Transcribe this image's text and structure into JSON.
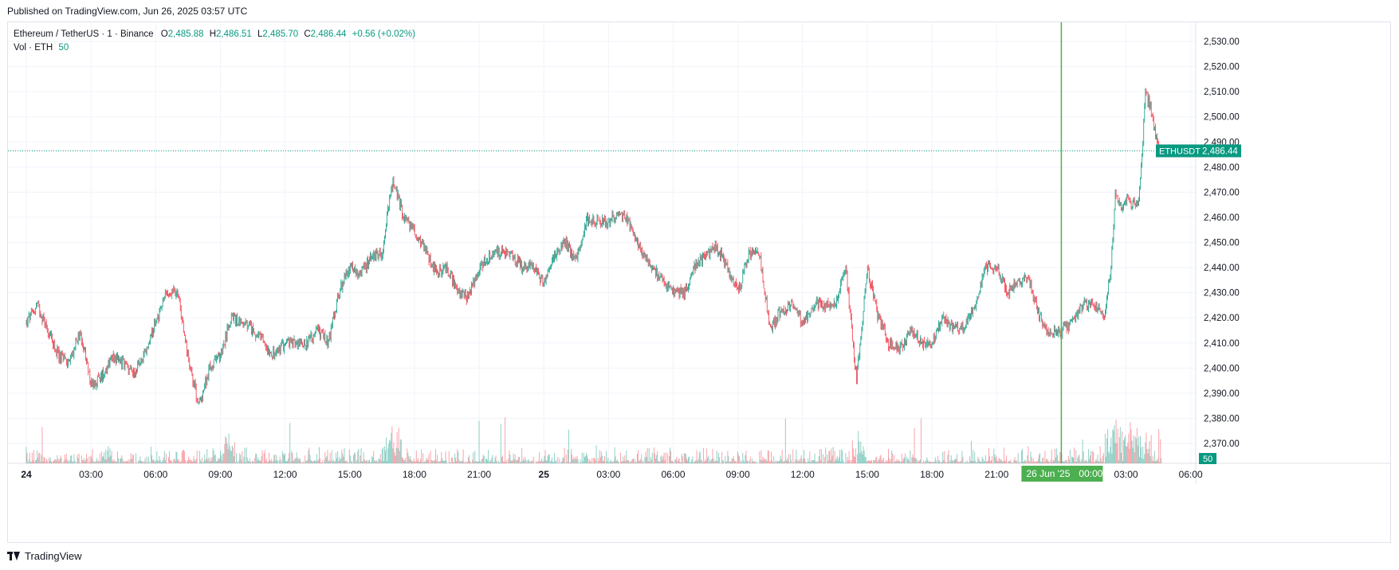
{
  "header": {
    "published": "Published on TradingView.com, Jun 26, 2025 03:57 UTC"
  },
  "legend": {
    "symbol": "Ethereum / TetherUS · 1 · Binance",
    "o_label": "O",
    "o_value": "2,485.88",
    "h_label": "H",
    "h_value": "2,486.51",
    "l_label": "L",
    "l_value": "2,485.70",
    "c_label": "C",
    "c_value": "2,486.44",
    "change": "+0.56 (+0.02%)",
    "vol_label": "Vol · ETH",
    "vol_value": "50"
  },
  "colors": {
    "up": "#089981",
    "down": "#f23645",
    "crosshair": "#4caf50",
    "price_line": "#089981"
  },
  "footer": {
    "brand": "TradingView",
    "icon": "tradingview-logo-icon"
  },
  "chart_data": {
    "type": "candlestick",
    "symbol": "ETHUSDT",
    "interval": "1 minute",
    "y_axis": {
      "min": 2362,
      "max": 2533,
      "ticks": [
        2370,
        2380,
        2390,
        2400,
        2410,
        2420,
        2430,
        2440,
        2450,
        2460,
        2470,
        2480,
        2490,
        2500,
        2510,
        2520,
        2530
      ],
      "tick_labels": [
        "2,370.00",
        "2,380.00",
        "2,390.00",
        "2,400.00",
        "2,410.00",
        "2,420.00",
        "2,430.00",
        "2,440.00",
        "2,450.00",
        "2,460.00",
        "2,470.00",
        "2,480.00",
        "2,490.00",
        "2,500.00",
        "2,510.00",
        "2,520.00",
        "2,530.00"
      ]
    },
    "x_axis": {
      "start_hour": 0,
      "end_hour": 54,
      "ticks": [
        {
          "hour": 0,
          "label": "24",
          "bold": true
        },
        {
          "hour": 3,
          "label": "03:00"
        },
        {
          "hour": 6,
          "label": "06:00"
        },
        {
          "hour": 9,
          "label": "09:00"
        },
        {
          "hour": 12,
          "label": "12:00"
        },
        {
          "hour": 15,
          "label": "15:00"
        },
        {
          "hour": 18,
          "label": "18:00"
        },
        {
          "hour": 21,
          "label": "21:00"
        },
        {
          "hour": 24,
          "label": "25",
          "bold": true
        },
        {
          "hour": 27,
          "label": "03:00"
        },
        {
          "hour": 30,
          "label": "06:00"
        },
        {
          "hour": 33,
          "label": "09:00"
        },
        {
          "hour": 36,
          "label": "12:00"
        },
        {
          "hour": 39,
          "label": "15:00"
        },
        {
          "hour": 42,
          "label": "18:00"
        },
        {
          "hour": 45,
          "label": "21:00"
        },
        {
          "hour": 51,
          "label": "03:00"
        },
        {
          "hour": 54,
          "label": "06:00"
        }
      ]
    },
    "crosshair": {
      "hour": 48,
      "label": "26 Jun '25",
      "time_label": "00:00"
    },
    "last_price": {
      "value": 2486.44,
      "label": "2,486.44",
      "symbol_label": "ETHUSDT"
    },
    "volume_last": {
      "label": "50"
    },
    "price_path": [
      [
        0.0,
        2418
      ],
      [
        0.5,
        2425
      ],
      [
        1.0,
        2415
      ],
      [
        1.5,
        2405
      ],
      [
        2.0,
        2402
      ],
      [
        2.5,
        2415
      ],
      [
        3.0,
        2393
      ],
      [
        3.5,
        2397
      ],
      [
        4.0,
        2405
      ],
      [
        4.5,
        2402
      ],
      [
        5.0,
        2398
      ],
      [
        5.5,
        2405
      ],
      [
        6.0,
        2418
      ],
      [
        6.5,
        2430
      ],
      [
        7.0,
        2430
      ],
      [
        7.5,
        2405
      ],
      [
        8.0,
        2385
      ],
      [
        8.5,
        2400
      ],
      [
        9.0,
        2405
      ],
      [
        9.5,
        2420
      ],
      [
        10.0,
        2418
      ],
      [
        10.5,
        2415
      ],
      [
        11.0,
        2410
      ],
      [
        11.5,
        2405
      ],
      [
        12.0,
        2410
      ],
      [
        12.5,
        2410
      ],
      [
        13.0,
        2410
      ],
      [
        13.5,
        2415
      ],
      [
        14.0,
        2410
      ],
      [
        14.5,
        2430
      ],
      [
        15.0,
        2440
      ],
      [
        15.5,
        2437
      ],
      [
        16.0,
        2445
      ],
      [
        16.5,
        2446
      ],
      [
        17.0,
        2475
      ],
      [
        17.5,
        2460
      ],
      [
        18.0,
        2455
      ],
      [
        18.5,
        2447
      ],
      [
        19.0,
        2438
      ],
      [
        19.5,
        2440
      ],
      [
        20.0,
        2430
      ],
      [
        20.5,
        2428
      ],
      [
        21.0,
        2440
      ],
      [
        21.5,
        2445
      ],
      [
        22.0,
        2446
      ],
      [
        22.5,
        2445
      ],
      [
        23.0,
        2440
      ],
      [
        23.5,
        2440
      ],
      [
        24.0,
        2434
      ],
      [
        24.5,
        2445
      ],
      [
        25.0,
        2450
      ],
      [
        25.5,
        2443
      ],
      [
        26.0,
        2460
      ],
      [
        26.5,
        2458
      ],
      [
        27.0,
        2458
      ],
      [
        27.5,
        2463
      ],
      [
        28.0,
        2457
      ],
      [
        28.5,
        2447
      ],
      [
        29.0,
        2440
      ],
      [
        29.5,
        2435
      ],
      [
        30.0,
        2430
      ],
      [
        30.5,
        2430
      ],
      [
        31.0,
        2440
      ],
      [
        31.5,
        2445
      ],
      [
        32.0,
        2448
      ],
      [
        32.5,
        2440
      ],
      [
        33.0,
        2430
      ],
      [
        33.5,
        2445
      ],
      [
        34.0,
        2445
      ],
      [
        34.5,
        2415
      ],
      [
        35.0,
        2423
      ],
      [
        35.5,
        2425
      ],
      [
        36.0,
        2418
      ],
      [
        36.5,
        2425
      ],
      [
        37.0,
        2425
      ],
      [
        37.5,
        2425
      ],
      [
        38.0,
        2440
      ],
      [
        38.5,
        2395
      ],
      [
        39.0,
        2440
      ],
      [
        39.5,
        2420
      ],
      [
        40.0,
        2410
      ],
      [
        40.5,
        2407
      ],
      [
        41.0,
        2415
      ],
      [
        41.5,
        2410
      ],
      [
        42.0,
        2410
      ],
      [
        42.5,
        2420
      ],
      [
        43.0,
        2415
      ],
      [
        43.5,
        2416
      ],
      [
        44.0,
        2425
      ],
      [
        44.5,
        2440
      ],
      [
        45.0,
        2440
      ],
      [
        45.5,
        2430
      ],
      [
        46.0,
        2435
      ],
      [
        46.5,
        2435
      ],
      [
        47.0,
        2420
      ],
      [
        47.5,
        2413
      ],
      [
        48.0,
        2415
      ],
      [
        48.5,
        2418
      ],
      [
        49.0,
        2425
      ],
      [
        49.5,
        2425
      ],
      [
        50.0,
        2422
      ],
      [
        50.3,
        2440
      ],
      [
        50.5,
        2470
      ],
      [
        50.8,
        2463
      ],
      [
        51.0,
        2468
      ],
      [
        51.3,
        2464
      ],
      [
        51.6,
        2468
      ],
      [
        51.75,
        2485
      ],
      [
        51.9,
        2510
      ],
      [
        52.1,
        2505
      ],
      [
        52.3,
        2495
      ],
      [
        52.5,
        2488
      ],
      [
        52.7,
        2486.44
      ]
    ]
  }
}
